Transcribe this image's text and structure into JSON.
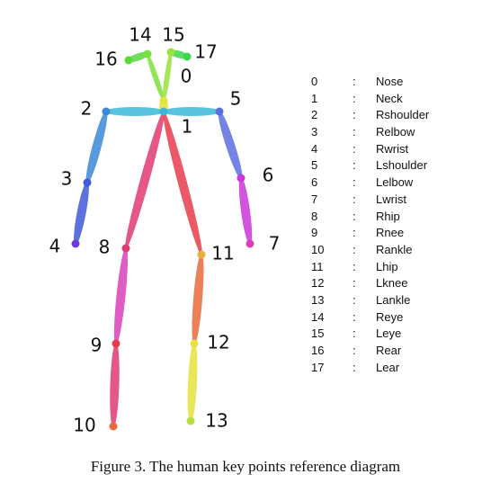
{
  "keypoints": [
    {
      "id": "0",
      "name": "Nose",
      "color": "#e8e23c"
    },
    {
      "id": "1",
      "name": "Neck",
      "color": "#39b8d8"
    },
    {
      "id": "2",
      "name": "Rshoulder",
      "color": "#3a8ad8"
    },
    {
      "id": "3",
      "name": "Relbow",
      "color": "#3f5bd8"
    },
    {
      "id": "4",
      "name": "Rwrist",
      "color": "#6a3dd8"
    },
    {
      "id": "5",
      "name": "Lshoulder",
      "color": "#5a6ee0"
    },
    {
      "id": "6",
      "name": "Lelbow",
      "color": "#cc35d8"
    },
    {
      "id": "7",
      "name": "Lwrist",
      "color": "#d83fb8"
    },
    {
      "id": "8",
      "name": "Rhip",
      "color": "#e03a70"
    },
    {
      "id": "9",
      "name": "Rnee",
      "color": "#e83c4c"
    },
    {
      "id": "10",
      "name": "Rankle",
      "color": "#e86a3c"
    },
    {
      "id": "11",
      "name": "Lhip",
      "color": "#e8b03c"
    },
    {
      "id": "12",
      "name": "Lknee",
      "color": "#e8e03c"
    },
    {
      "id": "13",
      "name": "Lankle",
      "color": "#b8e03c"
    },
    {
      "id": "14",
      "name": "Reye",
      "color": "#7ae03c"
    },
    {
      "id": "15",
      "name": "Leye",
      "color": "#9ae03c"
    },
    {
      "id": "16",
      "name": "Rear",
      "color": "#5ad83c"
    },
    {
      "id": "17",
      "name": "Lear",
      "color": "#3cd84a"
    }
  ],
  "legend_separator": ":",
  "caption": "Figure 3. The human key points reference diagram"
}
